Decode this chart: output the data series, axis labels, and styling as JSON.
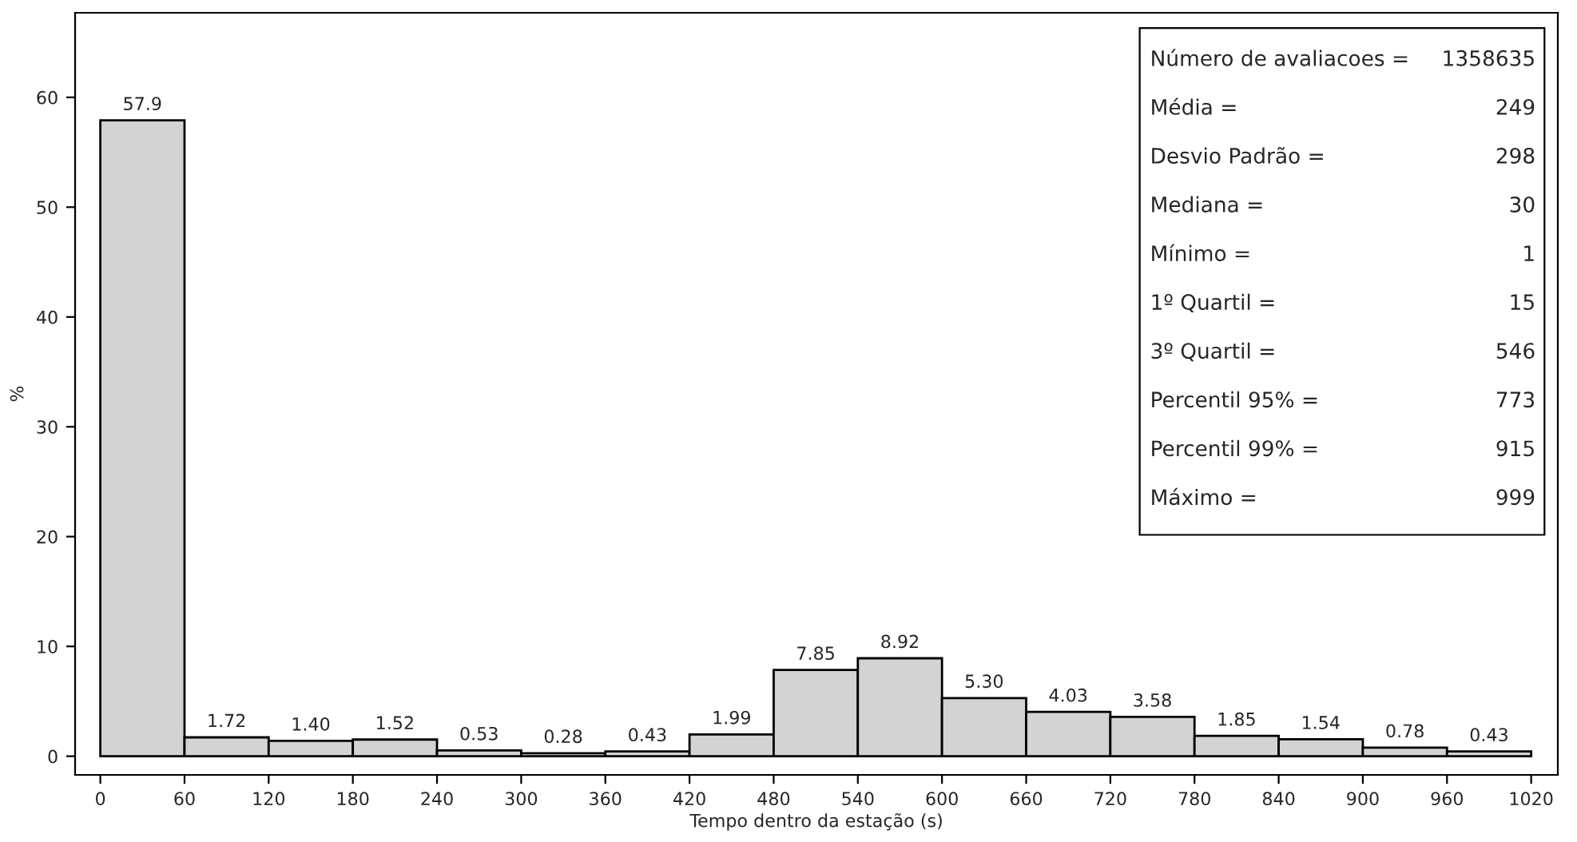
{
  "chart_data": {
    "type": "histogram",
    "xlabel": "Tempo dentro da estação (s)",
    "ylabel": "%",
    "bins": [
      0,
      60,
      120,
      180,
      240,
      300,
      360,
      420,
      480,
      540,
      600,
      660,
      720,
      780,
      840,
      900,
      960,
      1020
    ],
    "values": [
      57.9,
      1.72,
      1.4,
      1.52,
      0.53,
      0.28,
      0.43,
      1.99,
      7.85,
      8.92,
      5.3,
      4.03,
      3.58,
      1.85,
      1.54,
      0.78,
      0.43
    ],
    "value_labels": [
      "57.9",
      "1.72",
      "1.40",
      "1.52",
      "0.53",
      "0.28",
      "0.43",
      "1.99",
      "7.85",
      "8.92",
      "5.30",
      "4.03",
      "3.58",
      "1.85",
      "1.54",
      "0.78",
      "0.43"
    ],
    "color": "#d3d3d3",
    "xlim": [
      -18,
      1039
    ],
    "ylim": [
      -1.7,
      67.7
    ],
    "xticks": [
      0,
      60,
      120,
      180,
      240,
      300,
      360,
      420,
      480,
      540,
      600,
      660,
      720,
      780,
      840,
      900,
      960,
      1020
    ],
    "yticks": [
      0,
      10,
      20,
      30,
      40,
      50,
      60
    ],
    "grid": false,
    "legend": false,
    "annotations": [
      "Número de avaliacoes =",
      "1358635",
      "Média =",
      "249",
      "Desvio Padrão =",
      "298",
      "Mediana =",
      "30",
      "Mínimo =",
      "1",
      "1º Quartil =",
      "15",
      "3º Quartil =",
      "546",
      "Percentil 95% =",
      "773",
      "Percentil 99% =",
      "915",
      "Máximo =",
      "999"
    ]
  }
}
